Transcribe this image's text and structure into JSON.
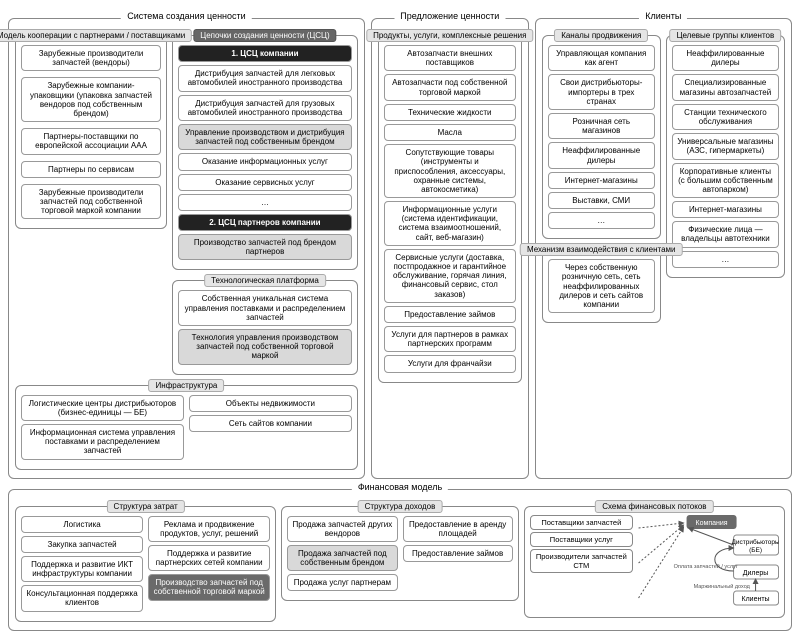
{
  "colors": {
    "border": "#888888",
    "shaded": "#d9d9d9",
    "dark": "#6a6a6a",
    "black": "#222222",
    "text": "#000000",
    "bg": "#ffffff"
  },
  "top": {
    "value_system": {
      "title": "Система создания ценности",
      "cooperation": {
        "title": "Модель кооперации с партнерами / поставщиками",
        "items": [
          "Зарубежные производители запчастей (вендоры)",
          "Зарубежные компании-упаковщики (упаковка запчастей вендоров под собственным брендом)",
          "Партнеры-поставщики по европейской ассоциации AAA",
          "Партнеры по сервисам",
          "Зарубежные производители запчастей под собственной торговой маркой компании"
        ]
      },
      "chains": {
        "title": "Цепочки создания ценности (ЦСЦ)",
        "h1": "1. ЦСЦ компании",
        "c1": [
          {
            "t": "Дистрибуция запчастей для легковых автомобилей иностранного производства",
            "s": ""
          },
          {
            "t": "Дистрибуция запчастей для грузовых автомобилей иностранного производства",
            "s": ""
          },
          {
            "t": "Управление производством и дистрибуция запчастей под собственным брендом",
            "s": "shaded"
          },
          {
            "t": "Оказание информационных услуг",
            "s": ""
          },
          {
            "t": "Оказание сервисных услуг",
            "s": ""
          },
          {
            "t": "…",
            "s": ""
          }
        ],
        "h2": "2. ЦСЦ партнеров компании",
        "c2": [
          {
            "t": "Производство запчастей под брендом партнеров",
            "s": "shaded"
          }
        ]
      },
      "platform": {
        "title": "Технологическая платформа",
        "items": [
          {
            "t": "Собственная уникальная система управления поставками и распределением запчастей",
            "s": ""
          },
          {
            "t": "Технология управления производством запчастей под собственной торговой маркой",
            "s": "shaded"
          }
        ]
      },
      "infra": {
        "title": "Инфраструктура",
        "left": [
          "Логистические центры дистрибьюторов (бизнес-единицы — БЕ)",
          "Информационная система управления поставками и распределением запчастей"
        ],
        "right": [
          "Объекты недвижимости",
          "Сеть сайтов компании"
        ]
      }
    },
    "value_prop": {
      "title": "Предложение ценности",
      "products": {
        "title": "Продукты, услуги, комплексные решения",
        "items": [
          "Автозапчасти внешних поставщиков",
          "Автозапчасти под собственной торговой маркой",
          "Технические жидкости",
          "Масла",
          "Сопутствующие товары (инструменты и приспособления, аксессуары, охранные системы, автокосметика)",
          "Информационные услуги (система идентификации, система взаимоотношений, сайт, веб-магазин)",
          "Сервисные услуги (доставка, постпродажное и гарантийное обслуживание, горячая линия, финансовый сервис, стол заказов)",
          "Предоставление займов",
          "Услуги для партнеров в рамках партнерских программ",
          "Услуги для франчайзи"
        ]
      }
    },
    "clients": {
      "title": "Клиенты",
      "channels": {
        "title": "Каналы продвижения",
        "items": [
          "Управляющая компания как агент",
          "Свои дистрибьюторы-импортеры в трех странах",
          "Розничная сеть магазинов",
          "Неаффилированные дилеры",
          "Интернет-магазины",
          "Выставки, СМИ",
          "…"
        ]
      },
      "groups": {
        "title": "Целевые группы клиентов",
        "items": [
          "Неаффилированные дилеры",
          "Специализированные магазины автозапчастей",
          "Станции технического обслуживания",
          "Универсальные магазины (АЗС, гипермаркеты)",
          "Корпоративные клиенты (с большим собственным автопарком)",
          "Интернет-магазины",
          "Физические лица — владельцы автотехники",
          "…"
        ]
      },
      "mechanism": {
        "title": "Механизм взаимодействия с клиентами",
        "items": [
          "Через собственную розничную сеть, сеть неаффилированных дилеров и сеть сайтов компании"
        ]
      }
    }
  },
  "fin": {
    "title": "Финансовая модель",
    "costs": {
      "title": "Структура затрат",
      "left": [
        {
          "t": "Логистика",
          "s": ""
        },
        {
          "t": "Закупка запчастей",
          "s": ""
        },
        {
          "t": "Поддержка и развитие ИКТ инфраструктуры компании",
          "s": ""
        },
        {
          "t": "Консультационная поддержка клиентов",
          "s": ""
        }
      ],
      "right": [
        {
          "t": "Реклама и продвижение продуктов, услуг, решений",
          "s": ""
        },
        {
          "t": "Поддержка и развитие партнерских сетей компании",
          "s": ""
        },
        {
          "t": "Производство запчастей под собственной торговой маркой",
          "s": "dark"
        }
      ]
    },
    "income": {
      "title": "Структура доходов",
      "left": [
        {
          "t": "Продажа запчастей других вендоров",
          "s": ""
        },
        {
          "t": "Продажа запчастей под собственным брендом",
          "s": "shaded"
        },
        {
          "t": "Продажа услуг партнерам",
          "s": ""
        }
      ],
      "right": [
        {
          "t": "Предоставление в аренду площадей",
          "s": ""
        },
        {
          "t": "Предоставление займов",
          "s": ""
        }
      ]
    },
    "flows": {
      "title": "Схема финансовых потоков",
      "nodes": {
        "company": "Компания",
        "distributors": "Дистрибьюторы (БЕ)",
        "suppliers_parts": "Поставщики запчастей",
        "suppliers_services": "Поставщики услуг",
        "producers": "Производители запчастей СТМ",
        "dealers": "Дилеры",
        "clients": "Клиенты"
      },
      "labels": {
        "parts": "Оплата запчастей / услуг",
        "marg": "Маржинальный доход"
      }
    }
  }
}
